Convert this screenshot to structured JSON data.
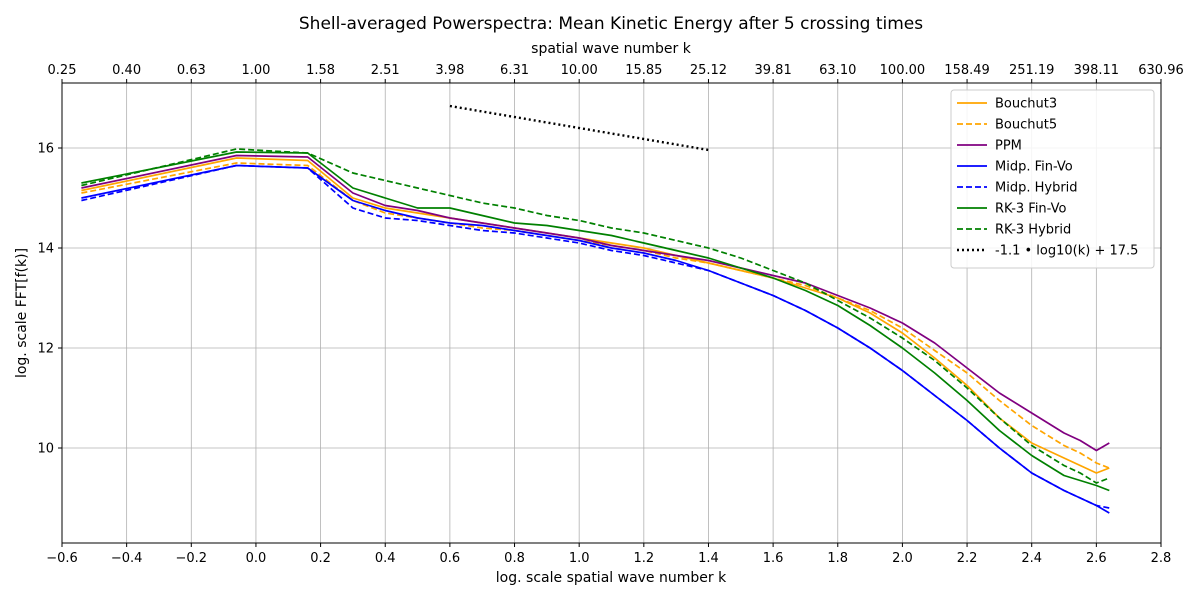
{
  "chart_data": {
    "type": "line",
    "title": "Shell-averaged Powerspectra: Mean Kinetic Energy after 5 crossing times",
    "xlabel": "log. scale spatial wave number k",
    "ylabel": "log. scale FFT[f(k)]",
    "top_xlabel": "spatial wave number k",
    "xlim": [
      -0.6,
      2.8
    ],
    "ylim": [
      8.1,
      17.3
    ],
    "xticks": [
      "−0.6",
      "−0.4",
      "−0.2",
      "0.0",
      "0.2",
      "0.4",
      "0.6",
      "0.8",
      "1.0",
      "1.2",
      "1.4",
      "1.6",
      "1.8",
      "2.0",
      "2.2",
      "2.4",
      "2.6",
      "2.8"
    ],
    "xtick_values": [
      -0.6,
      -0.4,
      -0.2,
      0.0,
      0.2,
      0.4,
      0.6,
      0.8,
      1.0,
      1.2,
      1.4,
      1.6,
      1.8,
      2.0,
      2.2,
      2.4,
      2.6,
      2.8
    ],
    "yticks": [
      "10",
      "12",
      "14",
      "16"
    ],
    "ytick_values": [
      10,
      12,
      14,
      16
    ],
    "top_xticks": [
      "0.25",
      "0.40",
      "0.63",
      "1.00",
      "1.58",
      "2.51",
      "3.98",
      "6.31",
      "10.00",
      "15.85",
      "25.12",
      "39.81",
      "63.10",
      "100.00",
      "158.49",
      "251.19",
      "398.11",
      "630.96"
    ],
    "grid": true,
    "legend_position": "top-right",
    "series": [
      {
        "name": "Bouchut3",
        "color": "#ffa500",
        "dash": "solid",
        "x": [
          -0.54,
          -0.06,
          0.16,
          0.3,
          0.4,
          0.5,
          0.6,
          0.7,
          0.8,
          0.9,
          1.0,
          1.1,
          1.2,
          1.3,
          1.4,
          1.5,
          1.6,
          1.7,
          1.8,
          1.9,
          2.0,
          2.1,
          2.2,
          2.3,
          2.4,
          2.5,
          2.55,
          2.6,
          2.64
        ],
        "y": [
          15.15,
          15.8,
          15.75,
          15.0,
          14.8,
          14.7,
          14.6,
          14.5,
          14.4,
          14.3,
          14.2,
          14.1,
          14.0,
          13.85,
          13.7,
          13.55,
          13.4,
          13.2,
          13.0,
          12.7,
          12.3,
          11.8,
          11.25,
          10.6,
          10.1,
          9.8,
          9.65,
          9.5,
          9.6
        ]
      },
      {
        "name": "Bouchut5",
        "color": "#ffa500",
        "dash": "dashed",
        "x": [
          -0.54,
          -0.06,
          0.16,
          0.3,
          0.4,
          0.5,
          0.6,
          0.7,
          0.8,
          0.9,
          1.0,
          1.1,
          1.2,
          1.3,
          1.4,
          1.5,
          1.6,
          1.7,
          1.8,
          1.9,
          2.0,
          2.1,
          2.2,
          2.3,
          2.4,
          2.5,
          2.55,
          2.6,
          2.64
        ],
        "y": [
          15.1,
          15.7,
          15.65,
          14.95,
          14.7,
          14.6,
          14.5,
          14.4,
          14.35,
          14.25,
          14.15,
          14.05,
          13.95,
          13.8,
          13.7,
          13.55,
          13.4,
          13.25,
          13.0,
          12.75,
          12.4,
          11.95,
          11.5,
          10.95,
          10.45,
          10.05,
          9.9,
          9.7,
          9.6
        ]
      },
      {
        "name": "PPM",
        "color": "#800080",
        "dash": "solid",
        "x": [
          -0.54,
          -0.06,
          0.16,
          0.3,
          0.4,
          0.5,
          0.6,
          0.7,
          0.8,
          0.9,
          1.0,
          1.1,
          1.2,
          1.3,
          1.4,
          1.5,
          1.6,
          1.7,
          1.8,
          1.9,
          2.0,
          2.1,
          2.2,
          2.3,
          2.4,
          2.5,
          2.55,
          2.6,
          2.64
        ],
        "y": [
          15.2,
          15.85,
          15.82,
          15.1,
          14.85,
          14.75,
          14.6,
          14.5,
          14.4,
          14.3,
          14.2,
          14.05,
          13.95,
          13.85,
          13.75,
          13.6,
          13.45,
          13.3,
          13.05,
          12.8,
          12.5,
          12.1,
          11.6,
          11.1,
          10.7,
          10.3,
          10.15,
          9.95,
          10.1
        ]
      },
      {
        "name": "Midp. Fin-Vo",
        "color": "#0000ff",
        "dash": "solid",
        "x": [
          -0.54,
          -0.06,
          0.16,
          0.3,
          0.4,
          0.5,
          0.6,
          0.7,
          0.8,
          0.9,
          1.0,
          1.1,
          1.2,
          1.3,
          1.4,
          1.5,
          1.6,
          1.7,
          1.8,
          1.9,
          2.0,
          2.1,
          2.2,
          2.3,
          2.4,
          2.5,
          2.55,
          2.6,
          2.64
        ],
        "y": [
          15.0,
          15.65,
          15.6,
          14.95,
          14.75,
          14.6,
          14.5,
          14.45,
          14.35,
          14.25,
          14.15,
          14.0,
          13.9,
          13.75,
          13.55,
          13.3,
          13.05,
          12.75,
          12.4,
          12.0,
          11.55,
          11.05,
          10.55,
          10.0,
          9.5,
          9.15,
          9.0,
          8.85,
          8.7
        ]
      },
      {
        "name": "Midp. Hybrid",
        "color": "#0000ff",
        "dash": "dashed",
        "x": [
          -0.54,
          -0.06,
          0.16,
          0.3,
          0.4,
          0.5,
          0.6,
          0.7,
          0.8,
          0.9,
          1.0,
          1.1,
          1.2,
          1.3,
          1.4,
          1.5,
          1.6,
          1.7,
          1.8,
          1.9,
          2.0,
          2.1,
          2.2,
          2.3,
          2.4,
          2.5,
          2.55,
          2.6,
          2.64
        ],
        "y": [
          14.95,
          15.65,
          15.6,
          14.8,
          14.6,
          14.55,
          14.45,
          14.35,
          14.3,
          14.2,
          14.1,
          13.95,
          13.85,
          13.7,
          13.55,
          13.3,
          13.05,
          12.75,
          12.4,
          12.0,
          11.55,
          11.05,
          10.55,
          10.0,
          9.5,
          9.15,
          9.0,
          8.85,
          8.8
        ]
      },
      {
        "name": "RK-3  Fin-Vo",
        "color": "#008000",
        "dash": "solid",
        "x": [
          -0.54,
          -0.06,
          0.16,
          0.3,
          0.4,
          0.5,
          0.6,
          0.7,
          0.8,
          0.9,
          1.0,
          1.1,
          1.2,
          1.3,
          1.4,
          1.5,
          1.6,
          1.7,
          1.8,
          1.9,
          2.0,
          2.1,
          2.2,
          2.3,
          2.4,
          2.5,
          2.55,
          2.6,
          2.64
        ],
        "y": [
          15.3,
          15.92,
          15.9,
          15.2,
          15.0,
          14.8,
          14.8,
          14.65,
          14.5,
          14.45,
          14.35,
          14.25,
          14.1,
          13.95,
          13.8,
          13.6,
          13.4,
          13.15,
          12.85,
          12.45,
          12.0,
          11.5,
          10.95,
          10.35,
          9.85,
          9.45,
          9.35,
          9.25,
          9.15
        ]
      },
      {
        "name": "RK-3  Hybrid",
        "color": "#008000",
        "dash": "dashed",
        "x": [
          -0.54,
          -0.06,
          0.16,
          0.3,
          0.4,
          0.5,
          0.6,
          0.7,
          0.8,
          0.9,
          1.0,
          1.1,
          1.2,
          1.3,
          1.4,
          1.5,
          1.6,
          1.7,
          1.8,
          1.9,
          2.0,
          2.1,
          2.2,
          2.3,
          2.4,
          2.5,
          2.55,
          2.6,
          2.64
        ],
        "y": [
          15.25,
          15.98,
          15.9,
          15.5,
          15.35,
          15.2,
          15.05,
          14.9,
          14.8,
          14.65,
          14.55,
          14.4,
          14.3,
          14.15,
          14.0,
          13.8,
          13.55,
          13.3,
          12.95,
          12.6,
          12.2,
          11.75,
          11.2,
          10.6,
          10.05,
          9.65,
          9.5,
          9.3,
          9.4
        ]
      },
      {
        "name": "-1.1 • log10(k) + 17.5",
        "color": "#000000",
        "dash": "dotted",
        "x": [
          0.6,
          1.4
        ],
        "y": [
          16.84,
          15.96
        ]
      }
    ]
  }
}
